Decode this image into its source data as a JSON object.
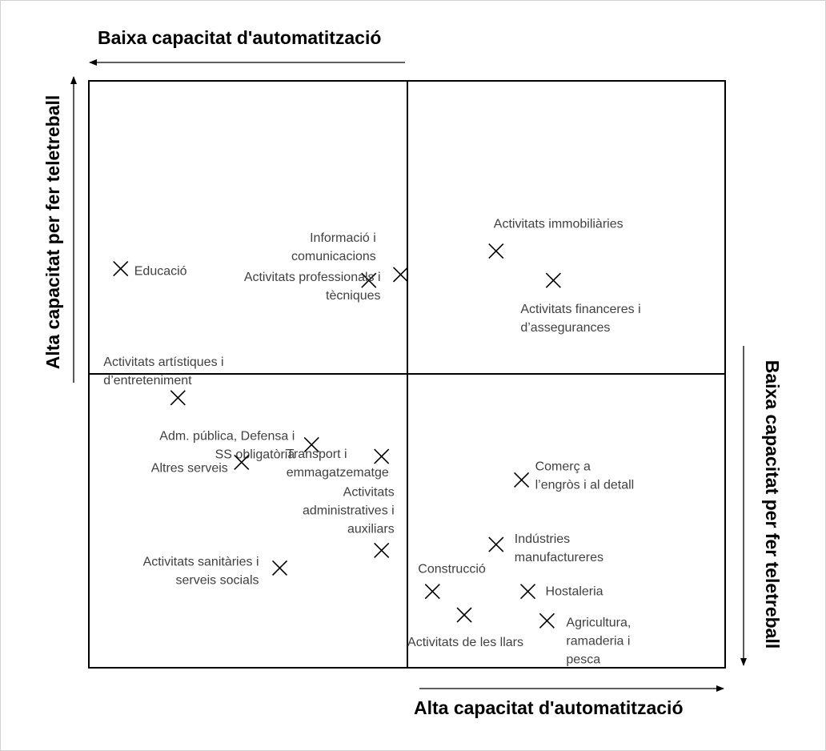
{
  "chart_data": {
    "type": "scatter",
    "title": "",
    "axes": {
      "top": "Baixa capacitat d'automatització",
      "bottom": "Alta capacitat d'automatització",
      "left": "Alta capacitat per fer teletreball",
      "right": "Baixa capacitat per fer teletreball"
    },
    "x_direction": "automatització (creixent cap a la dreta)",
    "y_direction": "teletreball (creixent cap amunt)",
    "xlim": [
      0,
      10
    ],
    "ylim": [
      0,
      10
    ],
    "grid": false,
    "legend": "none",
    "quadrant_split": {
      "x": 5,
      "y": 5
    },
    "points": [
      {
        "label": [
          "Educació"
        ],
        "x": 0.5,
        "y": 6.8
      },
      {
        "label": [
          "Informació i",
          "comunicacions"
        ],
        "x": 4.4,
        "y": 6.6
      },
      {
        "label": [
          "Activitats professionals i",
          "tècniques"
        ],
        "x": 4.9,
        "y": 6.7
      },
      {
        "label": [
          "Activitats immobiliàries"
        ],
        "x": 6.4,
        "y": 7.1
      },
      {
        "label": [
          "Activitats financeres i",
          "d’assegurances"
        ],
        "x": 7.3,
        "y": 6.6
      },
      {
        "label": [
          "Activitats artístiques i",
          "d’entreteniment"
        ],
        "x": 1.4,
        "y": 4.6
      },
      {
        "label": [
          "Transport i",
          "emmagatzematge"
        ],
        "x": 4.6,
        "y": 3.6
      },
      {
        "label": [
          "Adm. pública, Defensa i",
          "SS obligatòria"
        ],
        "x": 3.5,
        "y": 3.8
      },
      {
        "label": [
          "Altres serveis"
        ],
        "x": 2.4,
        "y": 3.5
      },
      {
        "label": [
          "Activitats",
          "administratives i",
          "auxiliars"
        ],
        "x": 4.6,
        "y": 2.0
      },
      {
        "label": [
          "Activitats sanitàries i",
          "serveis socials"
        ],
        "x": 3.0,
        "y": 1.7
      },
      {
        "label": [
          "Comerç a",
          "l’engròs i al detall"
        ],
        "x": 6.8,
        "y": 3.2
      },
      {
        "label": [
          "Indústries",
          "manufactureres"
        ],
        "x": 6.4,
        "y": 2.1
      },
      {
        "label": [
          "Construcció"
        ],
        "x": 5.4,
        "y": 1.3
      },
      {
        "label": [
          "Hostaleria"
        ],
        "x": 6.9,
        "y": 1.3
      },
      {
        "label": [
          "Activitats de les llars"
        ],
        "x": 5.9,
        "y": 0.9
      },
      {
        "label": [
          "Agricultura,",
          "ramaderia i",
          "pesca"
        ],
        "x": 7.2,
        "y": 0.8
      }
    ]
  }
}
